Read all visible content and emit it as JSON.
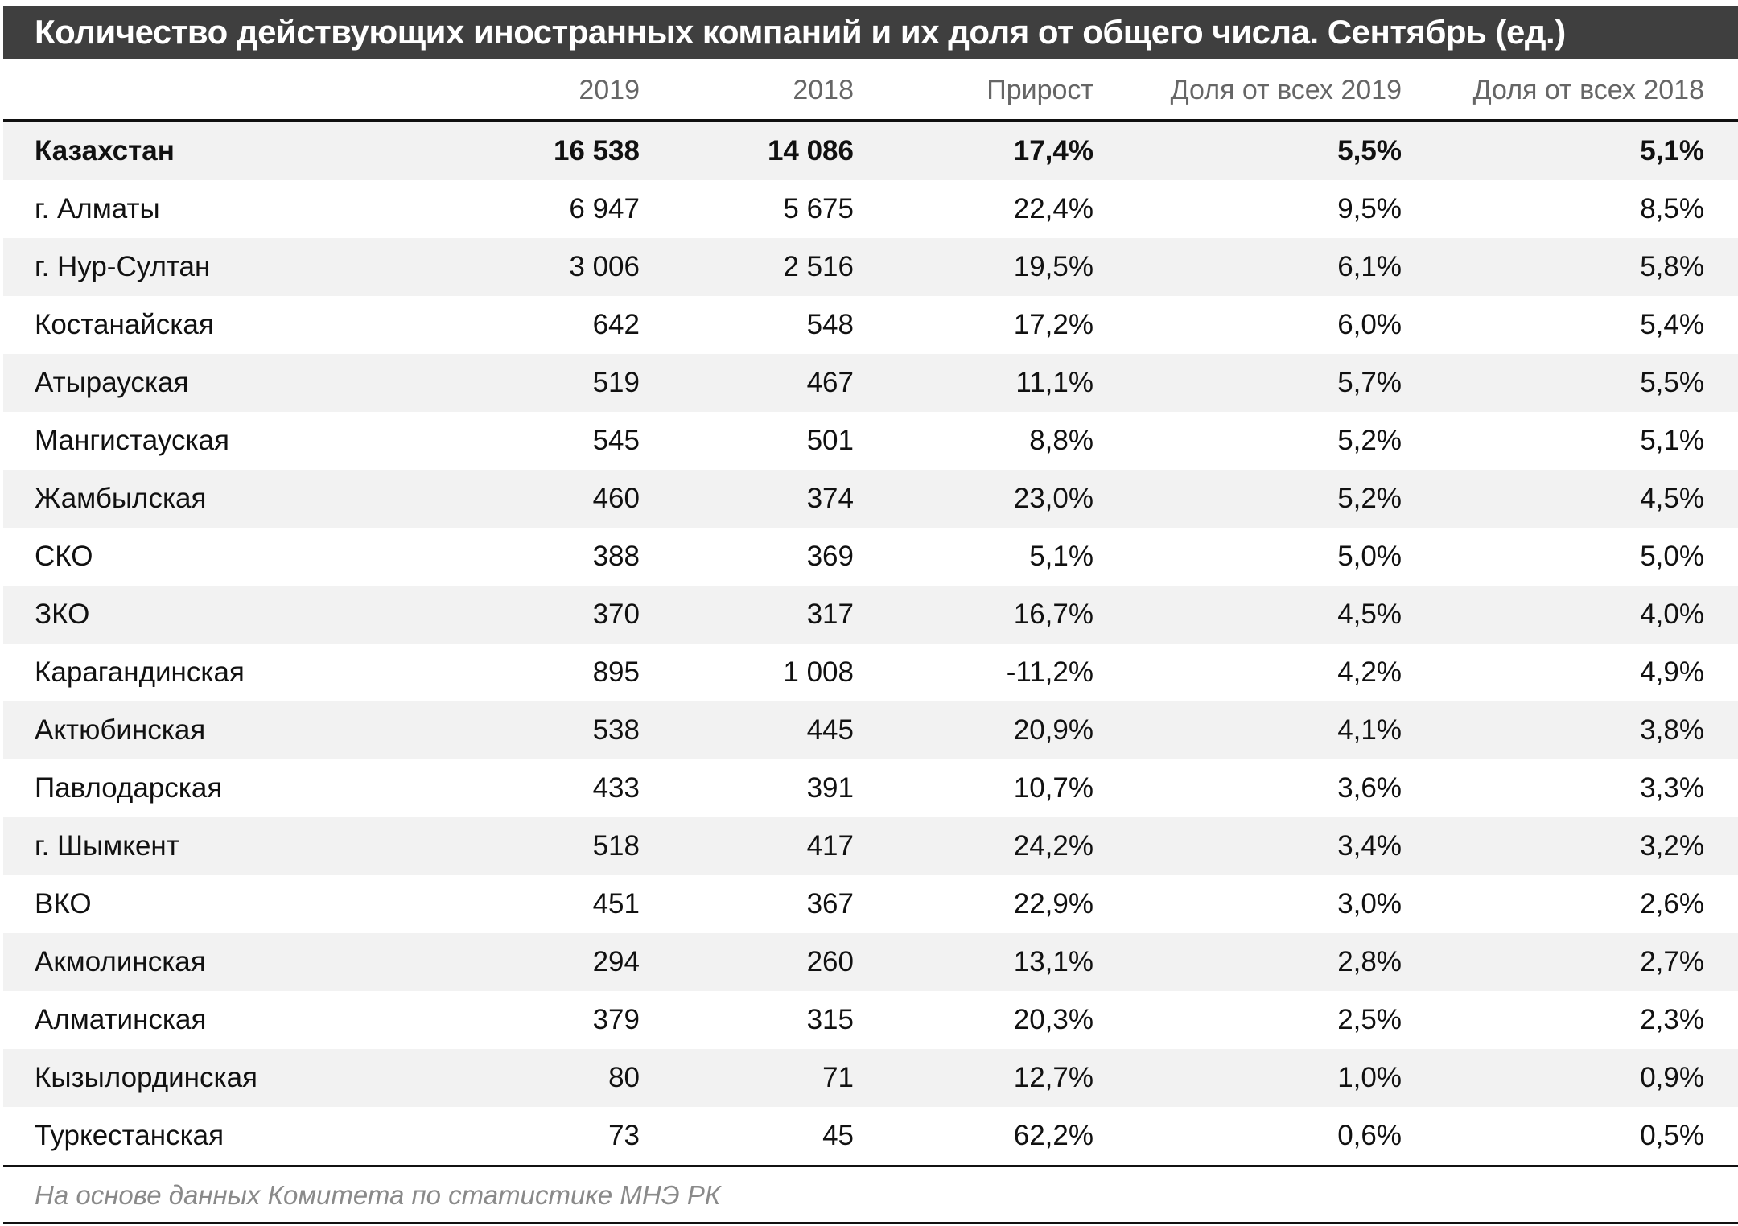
{
  "title": "Количество действующих иностранных компаний и их доля от общего числа. Сентябрь (ед.)",
  "columns": [
    "",
    "2019",
    "2018",
    "Прирост",
    "Доля от всех 2019",
    "Доля от всех 2018"
  ],
  "rows": [
    [
      "Казахстан",
      "16 538",
      "14 086",
      "17,4%",
      "5,5%",
      "5,1%"
    ],
    [
      "г. Алматы",
      "6 947",
      "5 675",
      "22,4%",
      "9,5%",
      "8,5%"
    ],
    [
      "г. Нур-Султан",
      "3 006",
      "2 516",
      "19,5%",
      "6,1%",
      "5,8%"
    ],
    [
      "Костанайская",
      "642",
      "548",
      "17,2%",
      "6,0%",
      "5,4%"
    ],
    [
      "Атырауская",
      "519",
      "467",
      "11,1%",
      "5,7%",
      "5,5%"
    ],
    [
      "Мангистауская",
      "545",
      "501",
      "8,8%",
      "5,2%",
      "5,1%"
    ],
    [
      "Жамбылская",
      "460",
      "374",
      "23,0%",
      "5,2%",
      "4,5%"
    ],
    [
      "СКО",
      "388",
      "369",
      "5,1%",
      "5,0%",
      "5,0%"
    ],
    [
      "ЗКО",
      "370",
      "317",
      "16,7%",
      "4,5%",
      "4,0%"
    ],
    [
      "Карагандинская",
      "895",
      "1 008",
      "-11,2%",
      "4,2%",
      "4,9%"
    ],
    [
      "Актюбинская",
      "538",
      "445",
      "20,9%",
      "4,1%",
      "3,8%"
    ],
    [
      "Павлодарская",
      "433",
      "391",
      "10,7%",
      "3,6%",
      "3,3%"
    ],
    [
      "г. Шымкент",
      "518",
      "417",
      "24,2%",
      "3,4%",
      "3,2%"
    ],
    [
      "ВКО",
      "451",
      "367",
      "22,9%",
      "3,0%",
      "2,6%"
    ],
    [
      "Акмолинская",
      "294",
      "260",
      "13,1%",
      "2,8%",
      "2,7%"
    ],
    [
      "Алматинская",
      "379",
      "315",
      "20,3%",
      "2,5%",
      "2,3%"
    ],
    [
      "Кызылординская",
      "80",
      "71",
      "12,7%",
      "1,0%",
      "0,9%"
    ],
    [
      "Туркестанская",
      "73",
      "45",
      "62,2%",
      "0,6%",
      "0,5%"
    ]
  ],
  "footer": "На основе данных Комитета по статистике МНЭ РК",
  "colors": {
    "title_bg": "#3f3f3f",
    "alt_row": "#f2f2f2",
    "header_text": "#666666",
    "footer_text": "#8a8a8a"
  }
}
